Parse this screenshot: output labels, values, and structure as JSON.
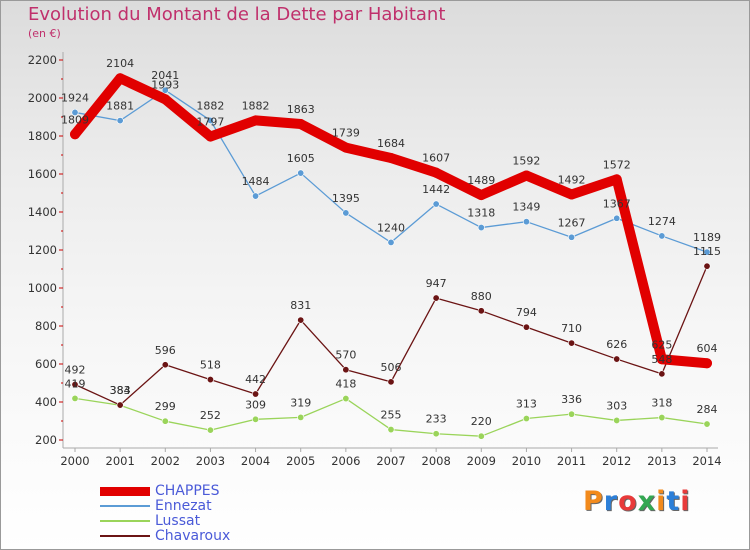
{
  "title": "Evolution du Montant de la Dette par Habitant",
  "subtitle": "(en €)",
  "logo": {
    "text": "Proxiti",
    "colors": [
      "#f28a1c",
      "#2c7fd8",
      "#e83a3a",
      "#33a852",
      "#f28a1c",
      "#2c7fd8",
      "#e83a3a"
    ]
  },
  "chart_data": {
    "type": "line",
    "x": [
      2000,
      2001,
      2002,
      2003,
      2004,
      2005,
      2006,
      2007,
      2008,
      2009,
      2010,
      2011,
      2012,
      2013,
      2014
    ],
    "ylim": [
      200,
      2200
    ],
    "yticks": [
      200,
      400,
      600,
      800,
      1000,
      1200,
      1400,
      1600,
      1800,
      2000,
      2200
    ],
    "grid": false,
    "legend_position": "bottom-left",
    "series": [
      {
        "name": "CHAPPES",
        "color": "#e10000",
        "values": [
          1809,
          2104,
          1993,
          1797,
          1882,
          1863,
          1739,
          1684,
          1607,
          1489,
          1592,
          1492,
          1572,
          625,
          604
        ]
      },
      {
        "name": "Ennezat",
        "color": "#5b9bd5",
        "values": [
          1924,
          1881,
          2041,
          1882,
          1484,
          1605,
          1395,
          1240,
          1442,
          1318,
          1349,
          1267,
          1367,
          1274,
          1189
        ]
      },
      {
        "name": "Lussat",
        "color": "#9ad45a",
        "values": [
          419,
          383,
          299,
          252,
          309,
          319,
          418,
          255,
          233,
          220,
          313,
          336,
          303,
          318,
          284
        ]
      },
      {
        "name": "Chavaroux",
        "color": "#6b1414",
        "values": [
          492,
          384,
          596,
          518,
          442,
          831,
          570,
          506,
          947,
          880,
          794,
          710,
          626,
          548,
          1115
        ]
      }
    ]
  }
}
